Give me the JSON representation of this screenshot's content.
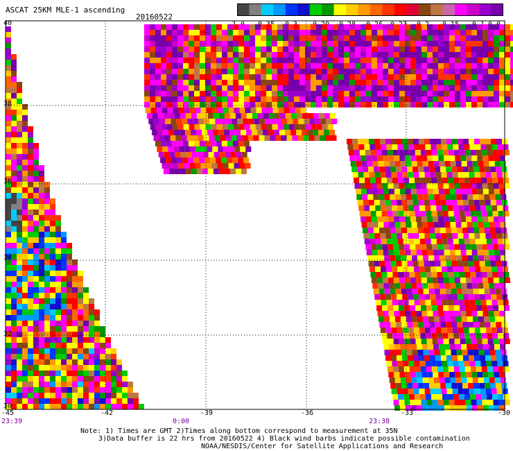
{
  "header": {
    "title": "ASCAT 25KM MLE-1 ascending",
    "date": "20160522"
  },
  "colorbar": {
    "colors": [
      "#444444",
      "#808080",
      "#00ccff",
      "#0099ff",
      "#0033ff",
      "#1010cc",
      "#00cc00",
      "#009900",
      "#ffff00",
      "#ffcc00",
      "#ff9900",
      "#ff6600",
      "#ff3300",
      "#ff0000",
      "#dd0033",
      "#8b4513",
      "#bb7744",
      "#cc66aa",
      "#ff00ff",
      "#cc00cc",
      "#9900cc",
      "#7700aa"
    ],
    "labels": [
      "-1.0",
      "-0.35",
      "-0.3",
      "-0.29",
      "-0.28",
      "-0.26",
      "-0.23",
      "-0.2",
      "-0.15",
      "-0.1",
      "0.0"
    ]
  },
  "map": {
    "lat_ticks": [
      "40",
      "38",
      "36",
      "34",
      "32",
      "30"
    ],
    "lon_ticks": [
      "-45",
      "-42",
      "-39",
      "-36",
      "-33",
      "-30"
    ],
    "time_labels": [
      "23:39",
      "0:00",
      "23:38"
    ],
    "lon_range": [
      -45,
      -30
    ],
    "lat_range": [
      30,
      40
    ],
    "grid": "dotted",
    "swath_colors": [
      "#ff0000",
      "#ff3300",
      "#ff6600",
      "#ff9900",
      "#ffcc00",
      "#ffff00",
      "#ff00ff",
      "#cc00cc",
      "#9900cc",
      "#7700aa",
      "#8b4513",
      "#bb7744",
      "#00cc00",
      "#009900",
      "#0033ff",
      "#0099ff",
      "#00ccff",
      "#1010cc",
      "#444444",
      "#808080"
    ]
  },
  "footer": {
    "line1": "Note: 1) Times are GMT 2)Times along bottom correspond to measurement at 35N",
    "line2": "3)Data buffer is 22 hrs from 20160522 4) Black wind barbs indicate possible contamination",
    "line3": "NOAA/NESDIS/Center for Satellite Applications and Research"
  }
}
